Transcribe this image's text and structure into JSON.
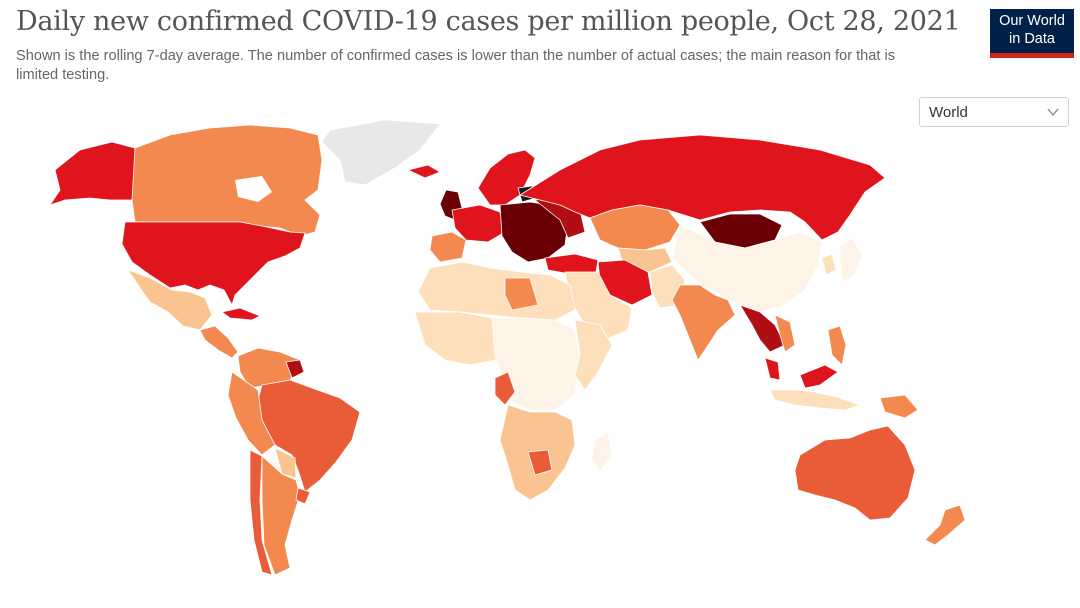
{
  "header": {
    "title": "Daily new confirmed COVID-19 cases per million people, Oct 28, 2021",
    "subtitle": "Shown is the rolling 7-day average. The number of confirmed cases is lower than the number of actual cases; the main reason for that is limited testing."
  },
  "logo": {
    "line1": "Our World",
    "line2": "in Data",
    "bg_color": "#002147",
    "bar_color": "#ce261e"
  },
  "region_select": {
    "value": "World",
    "icon": "chevron-down-icon"
  },
  "map": {
    "type": "choropleth",
    "projection": "robinson",
    "palette": {
      "no_data": "#e8e8e8",
      "lowest": "#fdf3e6",
      "very_low": "#fde0bb",
      "low": "#f9c48f",
      "moderate": "#f4894f",
      "elevated": "#ea5b37",
      "high": "#e0141c",
      "very_high": "#b00e14",
      "extreme": "#6a0006",
      "maximum": "#1a1a1a"
    }
  }
}
